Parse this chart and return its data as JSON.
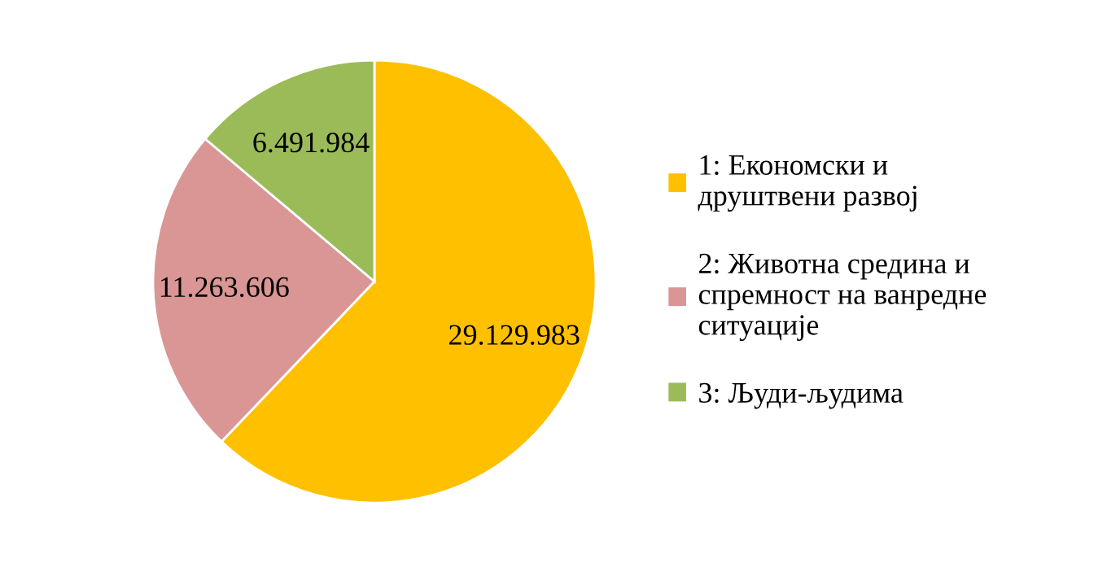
{
  "chart_data": {
    "type": "pie",
    "categories": [
      "1: Економски и\nдруштвени развој",
      "2: Животна средина и\nспремност на ванредне\nситуације",
      "3: Људи-људима"
    ],
    "values": [
      29129983,
      11263606,
      6491984
    ],
    "value_labels": [
      "29.129.983",
      "11.263.606",
      "6.491.984"
    ],
    "colors": [
      "#ffc000",
      "#d99694",
      "#9bbb59"
    ],
    "legend": "right"
  }
}
